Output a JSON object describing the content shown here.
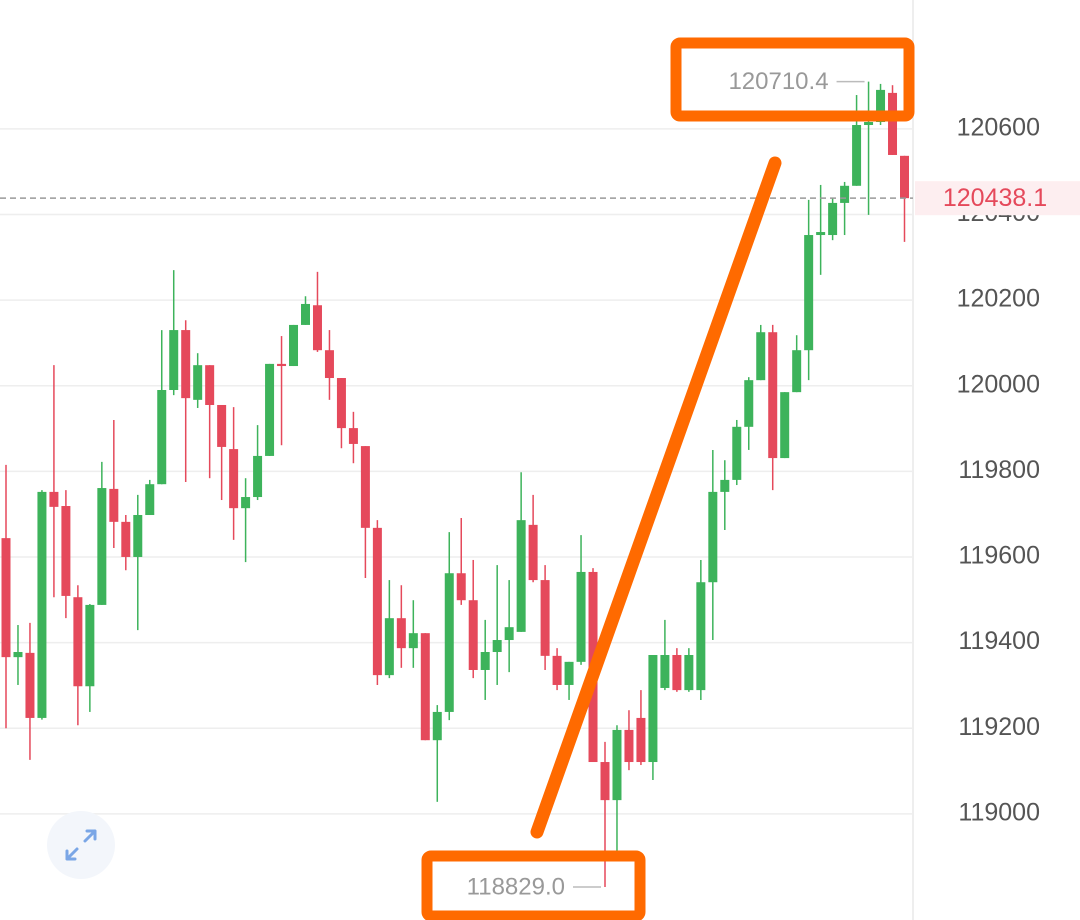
{
  "chart_data": {
    "type": "candlestick",
    "open": [
      119644,
      119366,
      119376,
      119224,
      119752,
      119719,
      119506,
      119298,
      119488,
      119759,
      119682,
      119600,
      119698,
      119770,
      119990,
      120130,
      119967,
      120048,
      119955,
      119852,
      119714,
      119740,
      119836,
      120051,
      120046,
      120142,
      120188,
      120083,
      120018,
      119901,
      119859,
      119668,
      119324,
      119457,
      119387,
      119422,
      119172,
      119238,
      119562,
      119499,
      119336,
      119378,
      119406,
      119425,
      119675,
      119546,
      119369,
      119301,
      119355,
      119565,
      119121,
      119032,
      119196,
      119224,
      119121,
      119294,
      119371,
      119289,
      119289,
      119541,
      119752,
      119780,
      119904,
      120013,
      120125,
      119831,
      119985,
      120083,
      120352,
      120352,
      120427,
      120467,
      120609,
      120616,
      120684,
      120537
    ],
    "high": [
      119815,
      119441,
      119446,
      119756,
      120048,
      119756,
      119534,
      119490,
      119822,
      119920,
      119698,
      119745,
      119780,
      120130,
      120270,
      120153,
      120076,
      120048,
      119955,
      119950,
      119784,
      119908,
      120051,
      120116,
      120142,
      120209,
      120266,
      120130,
      120018,
      119939,
      119859,
      119686,
      119546,
      119534,
      119499,
      119422,
      119254,
      119658,
      119691,
      119593,
      119453,
      119581,
      119546,
      119798,
      119745,
      119581,
      119387,
      119355,
      119651,
      119574,
      119168,
      119207,
      119242,
      119289,
      119371,
      119453,
      119387,
      119387,
      119593,
      119850,
      119826,
      119920,
      120020,
      120142,
      120142,
      119985,
      120118,
      120434,
      120469,
      120439,
      120476,
      120679,
      120710.4,
      120705,
      120702,
      120537
    ],
    "low": [
      119200,
      119301,
      119126,
      119220,
      119506,
      119457,
      119207,
      119238,
      119488,
      119621,
      119569,
      119429,
      119698,
      119770,
      119978,
      119775,
      119948,
      119784,
      119733,
      119640,
      119588,
      119733,
      119836,
      119861,
      120046,
      120142,
      120079,
      119967,
      119854,
      119819,
      119551,
      119301,
      119317,
      119341,
      119341,
      119172,
      119028,
      119219,
      119488,
      119317,
      119266,
      119301,
      119331,
      119425,
      119541,
      119336,
      119289,
      119266,
      119348,
      119121,
      118829,
      118897,
      119102,
      119114,
      119079,
      119289,
      119285,
      119285,
      119266,
      119406,
      119663,
      119768,
      119850,
      120013,
      119756,
      119831,
      119985,
      120013,
      120259,
      120340,
      120352,
      120467,
      120399,
      120609,
      120539,
      120336
    ],
    "close": [
      119366,
      119378,
      119224,
      119752,
      119717,
      119509,
      119298,
      119488,
      119761,
      119682,
      119600,
      119698,
      119770,
      119990,
      120130,
      119971,
      120048,
      119955,
      119857,
      119714,
      119740,
      119836,
      120051,
      120046,
      120142,
      120191,
      120083,
      120018,
      119901,
      119864,
      119668,
      119324,
      119457,
      119387,
      119422,
      119172,
      119238,
      119562,
      119499,
      119336,
      119378,
      119406,
      119436,
      119686,
      119546,
      119369,
      119301,
      119355,
      119565,
      119121,
      119032,
      119196,
      119121,
      119121,
      119371,
      119371,
      119289,
      119371,
      119541,
      119752,
      119780,
      119904,
      120013,
      120125,
      119831,
      119985,
      120083,
      120352,
      120359,
      120427,
      120467,
      120609,
      120616,
      120691,
      120539,
      120438.1
    ],
    "up_color": "#3db35b",
    "down_color": "#e5495b",
    "ylim": [
      118752,
      120901
    ],
    "yticks": [
      119000,
      119200,
      119400,
      119600,
      119800,
      120000,
      120200,
      120400,
      120600
    ],
    "grid": true,
    "last_price": 120438.1,
    "max_label": "120710.4",
    "min_label": "118829.0"
  }
}
